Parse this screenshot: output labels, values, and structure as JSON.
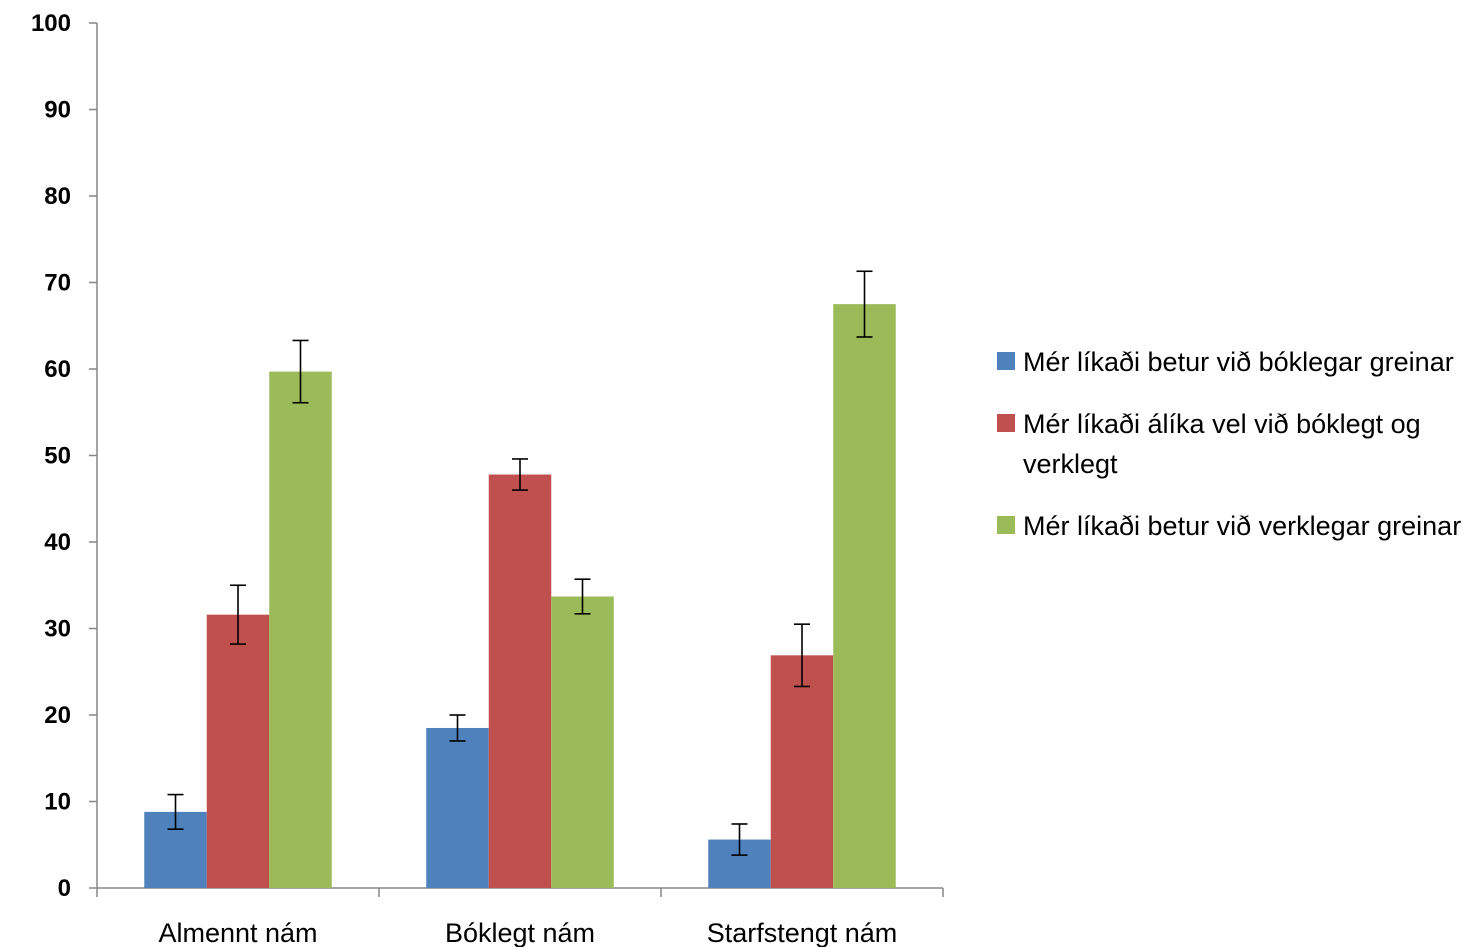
{
  "chart_data": {
    "type": "bar",
    "categories": [
      "Almennt nám",
      "Bóklegt nám",
      "Starfstengt nám"
    ],
    "series": [
      {
        "name": "Mér líkaði betur við bóklegar greinar",
        "color": "#4F81BD",
        "values": [
          8.8,
          18.5,
          5.6
        ],
        "error": [
          2.0,
          1.5,
          1.8
        ]
      },
      {
        "name": "Mér líkaði álíka vel við bóklegt og verklegt",
        "color": "#C0504D",
        "values": [
          31.6,
          47.8,
          26.9
        ],
        "error": [
          3.4,
          1.8,
          3.6
        ]
      },
      {
        "name": "Mér líkaði betur við verklegar greinar",
        "color": "#9BBB59",
        "values": [
          59.7,
          33.7,
          67.5
        ],
        "error": [
          3.6,
          2.0,
          3.8
        ]
      }
    ],
    "yticks": [
      "0",
      "10",
      "20",
      "30",
      "40",
      "50",
      "60",
      "70",
      "80",
      "90",
      "100"
    ],
    "ylim": [
      0,
      100
    ],
    "grid": false,
    "legend_position": "right",
    "title": "",
    "xlabel": "",
    "ylabel": ""
  }
}
